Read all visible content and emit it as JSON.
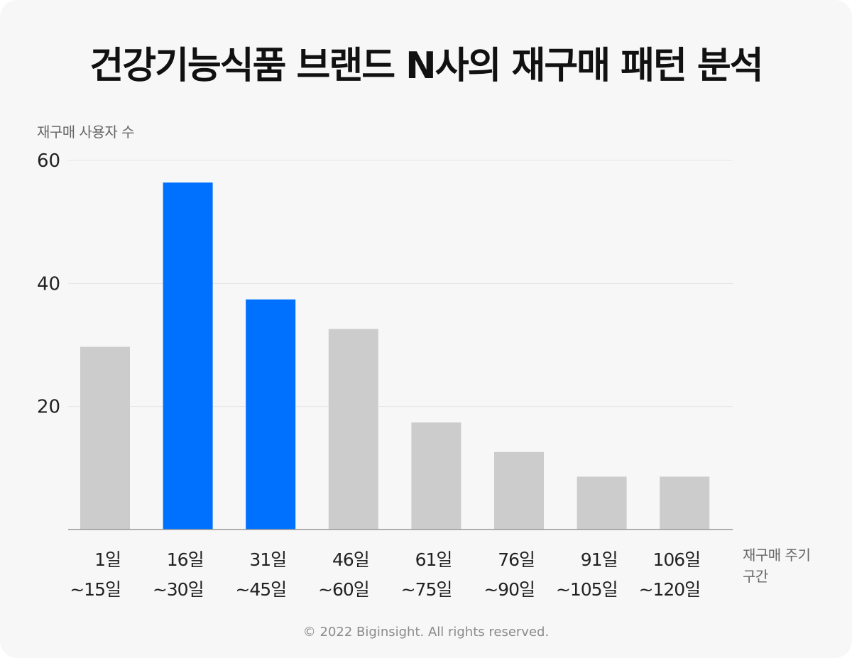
{
  "chart_data": {
    "type": "bar",
    "title": "건강기능식품 브랜드 N사의 재구매 패턴 분석",
    "ylabel": "재구매 사용자 수",
    "xlabel": [
      "재구매 주기",
      "구간"
    ],
    "ylim": [
      0,
      60
    ],
    "yticks": [
      20,
      40,
      60
    ],
    "grid": true,
    "categories": [
      [
        "1일",
        "~15일"
      ],
      [
        "16일",
        "~30일"
      ],
      [
        "31일",
        "~45일"
      ],
      [
        "46일",
        "~60일"
      ],
      [
        "61일",
        "~75일"
      ],
      [
        "76일",
        "~90일"
      ],
      [
        "91일",
        "~105일"
      ],
      [
        "106일",
        "~120일"
      ]
    ],
    "values": [
      29.7,
      56.4,
      37.4,
      32.6,
      17.4,
      12.6,
      8.6,
      8.6
    ],
    "highlight": [
      false,
      true,
      true,
      false,
      false,
      false,
      false,
      false
    ],
    "colors": {
      "bar": "#cccccc",
      "highlight": "#0070ff",
      "grid": "#e4e4e4",
      "axis": "#999999"
    }
  },
  "footer": {
    "copyright": "© 2022 Biginsight. All rights reserved."
  }
}
